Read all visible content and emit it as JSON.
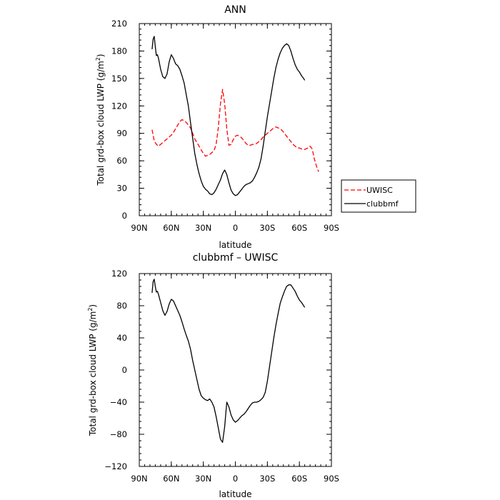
{
  "chart_data": [
    {
      "type": "line",
      "title": "ANN",
      "xlabel": "latitude",
      "ylabel": "Total grd-box cloud LWP (g/m²)",
      "ylabel_main": "Total grd-box cloud LWP (g/m",
      "ylabel_sup": "2",
      "ylabel_end": ")",
      "xlim": [
        90,
        -90
      ],
      "ylim": [
        0,
        210
      ],
      "x_ticks": [
        90,
        60,
        30,
        0,
        -30,
        -60,
        -90
      ],
      "x_tick_labels": [
        "90N",
        "60N",
        "30N",
        "0",
        "30S",
        "60S",
        "90S"
      ],
      "y_ticks": [
        0,
        30,
        60,
        90,
        120,
        150,
        180,
        210
      ],
      "y_tick_labels": [
        "0",
        "30",
        "60",
        "90",
        "120",
        "150",
        "180",
        "210"
      ],
      "legend_position": "right",
      "series": [
        {
          "name": "UWISC",
          "color": "#ff0000",
          "dash": "dashed",
          "x": [
            78,
            76,
            74,
            72,
            70,
            68,
            66,
            64,
            62,
            60,
            58,
            56,
            54,
            52,
            50,
            48,
            46,
            44,
            42,
            40,
            38,
            36,
            34,
            32,
            30,
            28,
            26,
            24,
            22,
            20,
            18,
            16,
            14,
            12,
            10,
            8,
            6,
            4,
            2,
            0,
            -2,
            -4,
            -6,
            -8,
            -10,
            -12,
            -14,
            -16,
            -18,
            -20,
            -22,
            -24,
            -26,
            -28,
            -30,
            -32,
            -34,
            -36,
            -38,
            -40,
            -42,
            -44,
            -46,
            -48,
            -50,
            -52,
            -54,
            -56,
            -58,
            -60,
            -62,
            -64,
            -66,
            -68,
            -70,
            -72,
            -74,
            -76,
            -78
          ],
          "y": [
            94,
            82,
            78,
            76,
            78,
            80,
            82,
            84,
            86,
            88,
            91,
            95,
            99,
            103,
            105,
            104,
            102,
            99,
            96,
            90,
            84,
            80,
            76,
            72,
            68,
            65,
            66,
            67,
            69,
            71,
            78,
            96,
            122,
            138,
            122,
            95,
            77,
            78,
            83,
            87,
            88,
            87,
            85,
            82,
            79,
            77,
            77,
            78,
            78,
            79,
            81,
            83,
            86,
            88,
            90,
            92,
            94,
            96,
            97,
            96,
            95,
            93,
            90,
            87,
            84,
            81,
            78,
            76,
            74,
            74,
            73,
            72,
            73,
            74,
            76,
            73,
            62,
            54,
            48
          ]
        },
        {
          "name": "clubbmf",
          "color": "#000000",
          "dash": "solid",
          "x": [
            78,
            77,
            76,
            75,
            74,
            73,
            72,
            70,
            68,
            66,
            64,
            62,
            60,
            58,
            56,
            54,
            52,
            50,
            48,
            46,
            44,
            42,
            40,
            38,
            36,
            34,
            32,
            30,
            28,
            26,
            24,
            22,
            20,
            18,
            16,
            14,
            12,
            10,
            8,
            6,
            4,
            2,
            0,
            -2,
            -4,
            -6,
            -8,
            -10,
            -12,
            -14,
            -16,
            -18,
            -20,
            -22,
            -24,
            -26,
            -28,
            -30,
            -32,
            -34,
            -36,
            -38,
            -40,
            -42,
            -44,
            -46,
            -48,
            -50,
            -52,
            -54,
            -56,
            -58,
            -60,
            -62,
            -64,
            -65
          ],
          "y": [
            182,
            193,
            196,
            185,
            175,
            176,
            172,
            160,
            152,
            150,
            155,
            168,
            176,
            172,
            166,
            164,
            160,
            153,
            145,
            132,
            120,
            102,
            85,
            68,
            56,
            46,
            38,
            32,
            29,
            27,
            24,
            23,
            25,
            29,
            34,
            39,
            46,
            50,
            45,
            36,
            28,
            24,
            22,
            23,
            26,
            29,
            32,
            34,
            35,
            36,
            38,
            42,
            47,
            53,
            62,
            76,
            92,
            108,
            122,
            136,
            150,
            162,
            171,
            178,
            183,
            186,
            188,
            186,
            180,
            172,
            165,
            160,
            157,
            153,
            150,
            148
          ]
        }
      ]
    },
    {
      "type": "line",
      "title": "clubbmf – UWISC",
      "xlabel": "latitude",
      "ylabel": "Total grd-box cloud LWP (g/m²)",
      "ylabel_main": "Total grd-box cloud LWP (g/m",
      "ylabel_sup": "2",
      "ylabel_end": ")",
      "xlim": [
        90,
        -90
      ],
      "ylim": [
        -120,
        120
      ],
      "x_ticks": [
        90,
        60,
        30,
        0,
        -30,
        -60,
        -90
      ],
      "x_tick_labels": [
        "90N",
        "60N",
        "30N",
        "0",
        "30S",
        "60S",
        "90S"
      ],
      "y_ticks": [
        -120,
        -80,
        -40,
        0,
        40,
        80,
        120
      ],
      "y_tick_labels": [
        "−120",
        "−80",
        "−40",
        "0",
        "40",
        "80",
        "120"
      ],
      "series": [
        {
          "color": "#000000",
          "dash": "solid",
          "x": [
            78,
            77,
            76,
            75,
            74,
            73,
            72,
            70,
            68,
            66,
            64,
            62,
            60,
            58,
            56,
            54,
            52,
            50,
            48,
            46,
            44,
            42,
            40,
            38,
            36,
            34,
            32,
            30,
            28,
            26,
            24,
            22,
            20,
            18,
            16,
            14,
            12,
            10,
            8,
            6,
            4,
            2,
            0,
            -2,
            -4,
            -6,
            -8,
            -10,
            -12,
            -14,
            -16,
            -18,
            -20,
            -22,
            -24,
            -26,
            -28,
            -30,
            -32,
            -34,
            -36,
            -38,
            -40,
            -42,
            -44,
            -46,
            -48,
            -50,
            -52,
            -54,
            -56,
            -58,
            -60,
            -62,
            -64,
            -65
          ],
          "y": [
            96,
            110,
            113,
            104,
            97,
            98,
            94,
            84,
            74,
            68,
            73,
            82,
            88,
            86,
            80,
            74,
            68,
            60,
            51,
            43,
            36,
            26,
            12,
            0,
            -12,
            -24,
            -32,
            -35,
            -37,
            -38,
            -36,
            -40,
            -46,
            -58,
            -72,
            -86,
            -90,
            -70,
            -40,
            -46,
            -56,
            -62,
            -65,
            -63,
            -60,
            -57,
            -55,
            -52,
            -48,
            -44,
            -41,
            -40,
            -40,
            -39,
            -37,
            -34,
            -28,
            -14,
            4,
            22,
            40,
            56,
            70,
            83,
            91,
            98,
            104,
            106,
            106,
            102,
            98,
            92,
            87,
            84,
            80,
            78
          ]
        }
      ]
    }
  ]
}
